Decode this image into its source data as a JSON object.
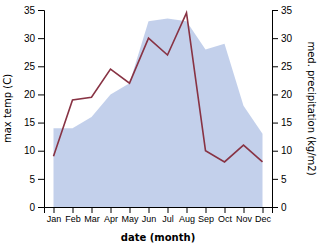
{
  "chart_data": {
    "type": "line",
    "categories": [
      "Jan",
      "Feb",
      "Mar",
      "Apr",
      "May",
      "Jun",
      "Jul",
      "Aug",
      "Sep",
      "Oct",
      "Nov",
      "Dec"
    ],
    "series": [
      {
        "type": "area",
        "color": "#b8c8e8",
        "axis": "y2",
        "values": [
          14.0,
          14.0,
          16.0,
          20.0,
          22.0,
          33.0,
          33.5,
          33.0,
          28.0,
          29.0,
          18.0,
          13.0
        ]
      },
      {
        "type": "line",
        "color": "#883344",
        "values": [
          9.0,
          19.0,
          19.5,
          24.5,
          22.0,
          30.0,
          27.0,
          34.5,
          10.0,
          8.0,
          11.0,
          8.0
        ]
      }
    ],
    "xlabel": "date (month)",
    "ylabel": "max temp (C)",
    "y2label": "med. precipitation (kg/m2)",
    "ylim": [
      0,
      35
    ],
    "yticks": [
      0,
      5,
      10,
      15,
      20,
      25,
      30,
      35
    ],
    "y2lim": [
      0,
      35
    ],
    "y2ticks": [
      0,
      5,
      10,
      15,
      20,
      25,
      30,
      35
    ],
    "grid": false
  }
}
